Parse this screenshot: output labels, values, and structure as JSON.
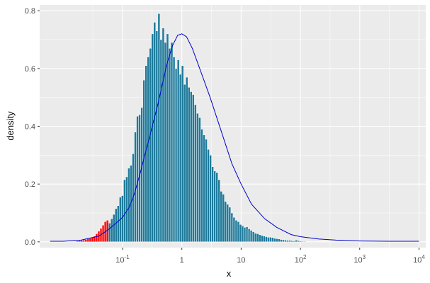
{
  "chart_data": {
    "type": "histogram",
    "title": "",
    "xlabel": "x",
    "ylabel": "density",
    "x_scale": "log10",
    "xlim": [
      0.004,
      13000
    ],
    "ylim": [
      -0.02,
      0.82
    ],
    "grid": true,
    "legend": "none",
    "x_ticks": [
      {
        "value": 0.1,
        "base": "10",
        "exp": "-1"
      },
      {
        "value": 1,
        "base": "1",
        "exp": ""
      },
      {
        "value": 10,
        "base": "10",
        "exp": ""
      },
      {
        "value": 100,
        "base": "10",
        "exp": "2"
      },
      {
        "value": 1000,
        "base": "10",
        "exp": "3"
      },
      {
        "value": 10000,
        "base": "10",
        "exp": "4"
      }
    ],
    "y_ticks": [
      {
        "value": 0.0,
        "label": "0.0"
      },
      {
        "value": 0.2,
        "label": "0.2"
      },
      {
        "value": 0.4,
        "label": "0.4"
      },
      {
        "value": 0.6,
        "label": "0.6"
      },
      {
        "value": 0.8,
        "label": "0.8"
      }
    ],
    "colors": {
      "panel": "#ebebeb",
      "grid_major": "#ffffff",
      "highlight_bar": "#ff0000",
      "bar": "#1f7a9a",
      "bar_outline": "#ffffff",
      "density_line": "#0000cc"
    },
    "bins": {
      "log10_start": -1.78,
      "log10_width": 0.0362,
      "highlight_count": 15,
      "heights": [
        0.003,
        0.004,
        0.005,
        0.006,
        0.008,
        0.01,
        0.012,
        0.015,
        0.02,
        0.028,
        0.037,
        0.047,
        0.058,
        0.07,
        0.075,
        0.065,
        0.08,
        0.095,
        0.115,
        0.125,
        0.155,
        0.16,
        0.215,
        0.225,
        0.255,
        0.265,
        0.305,
        0.38,
        0.435,
        0.44,
        0.465,
        0.56,
        0.61,
        0.64,
        0.67,
        0.72,
        0.76,
        0.73,
        0.79,
        0.7,
        0.74,
        0.69,
        0.72,
        0.67,
        0.69,
        0.64,
        0.6,
        0.63,
        0.58,
        0.61,
        0.545,
        0.57,
        0.535,
        0.52,
        0.51,
        0.475,
        0.445,
        0.43,
        0.39,
        0.37,
        0.355,
        0.32,
        0.3,
        0.26,
        0.245,
        0.24,
        0.215,
        0.175,
        0.165,
        0.14,
        0.13,
        0.12,
        0.1,
        0.085,
        0.075,
        0.07,
        0.06,
        0.055,
        0.05,
        0.052,
        0.045,
        0.04,
        0.035,
        0.03,
        0.028,
        0.025,
        0.022,
        0.02,
        0.018,
        0.016,
        0.016,
        0.015,
        0.012,
        0.011,
        0.01,
        0.008,
        0.007,
        0.006,
        0.005,
        0.005,
        0.004,
        0.003,
        0.006,
        0.004,
        0.003,
        0.002,
        0.002
      ]
    },
    "density_curve": [
      {
        "x": 0.006,
        "y": 0.002
      },
      {
        "x": 0.01,
        "y": 0.002
      },
      {
        "x": 0.02,
        "y": 0.006
      },
      {
        "x": 0.04,
        "y": 0.02
      },
      {
        "x": 0.06,
        "y": 0.045
      },
      {
        "x": 0.1,
        "y": 0.085
      },
      {
        "x": 0.13,
        "y": 0.12
      },
      {
        "x": 0.16,
        "y": 0.17
      },
      {
        "x": 0.2,
        "y": 0.24
      },
      {
        "x": 0.3,
        "y": 0.38
      },
      {
        "x": 0.4,
        "y": 0.48
      },
      {
        "x": 0.55,
        "y": 0.61
      },
      {
        "x": 0.7,
        "y": 0.68
      },
      {
        "x": 0.85,
        "y": 0.715
      },
      {
        "x": 1.0,
        "y": 0.72
      },
      {
        "x": 1.2,
        "y": 0.71
      },
      {
        "x": 1.5,
        "y": 0.67
      },
      {
        "x": 2.0,
        "y": 0.6
      },
      {
        "x": 3.0,
        "y": 0.5
      },
      {
        "x": 4.5,
        "y": 0.39
      },
      {
        "x": 7.0,
        "y": 0.27
      },
      {
        "x": 10,
        "y": 0.2
      },
      {
        "x": 15,
        "y": 0.13
      },
      {
        "x": 25,
        "y": 0.08
      },
      {
        "x": 40,
        "y": 0.05
      },
      {
        "x": 70,
        "y": 0.025
      },
      {
        "x": 100,
        "y": 0.018
      },
      {
        "x": 200,
        "y": 0.01
      },
      {
        "x": 400,
        "y": 0.006
      },
      {
        "x": 1000,
        "y": 0.003
      },
      {
        "x": 3000,
        "y": 0.002
      },
      {
        "x": 10000,
        "y": 0.002
      }
    ]
  }
}
